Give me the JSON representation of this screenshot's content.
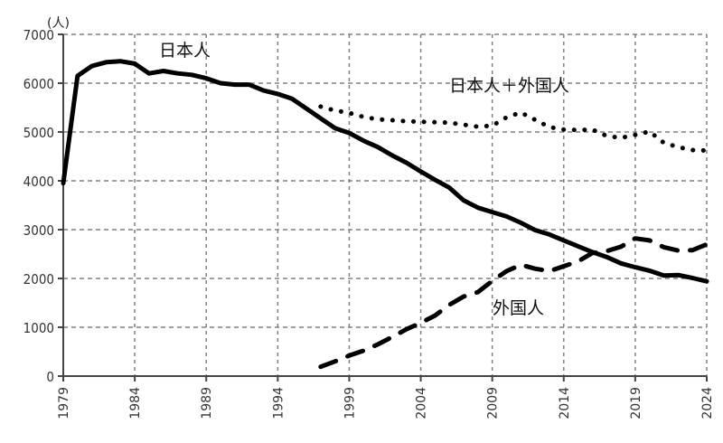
{
  "chart_data": {
    "type": "line",
    "title": "",
    "xlabel": "",
    "ylabel": "(人)",
    "y_unit_label": "(人)",
    "ylim": [
      0,
      7000
    ],
    "xlim": [
      1979,
      2024
    ],
    "grid": true,
    "legend_position": "inline annotations",
    "y_ticks": [
      0,
      1000,
      2000,
      3000,
      4000,
      5000,
      6000,
      7000
    ],
    "x_ticks": [
      1979,
      1984,
      1989,
      1994,
      1999,
      2004,
      2009,
      2014,
      2019,
      2024
    ],
    "x": [
      1979,
      1980,
      1981,
      1982,
      1983,
      1984,
      1985,
      1986,
      1987,
      1988,
      1989,
      1990,
      1991,
      1992,
      1993,
      1994,
      1995,
      1996,
      1997,
      1998,
      1999,
      2000,
      2001,
      2002,
      2003,
      2004,
      2005,
      2006,
      2007,
      2008,
      2009,
      2010,
      2011,
      2012,
      2013,
      2014,
      2015,
      2016,
      2017,
      2018,
      2019,
      2020,
      2021,
      2022,
      2023,
      2024
    ],
    "series": [
      {
        "name": "日本人",
        "style": "solid",
        "values": [
          3950,
          6150,
          6350,
          6430,
          6450,
          6400,
          6200,
          6250,
          6200,
          6170,
          6100,
          6000,
          5970,
          5970,
          5850,
          5780,
          5680,
          5480,
          5280,
          5080,
          4980,
          4820,
          4690,
          4520,
          4370,
          4190,
          4020,
          3860,
          3600,
          3450,
          3360,
          3270,
          3140,
          2990,
          2900,
          2780,
          2660,
          2540,
          2440,
          2310,
          2230,
          2160,
          2060,
          2070,
          2010,
          1940
        ]
      },
      {
        "name": "日本人＋外国人",
        "style": "dotted",
        "values": [
          null,
          null,
          null,
          null,
          null,
          null,
          null,
          null,
          null,
          null,
          null,
          null,
          null,
          null,
          null,
          null,
          null,
          null,
          5520,
          5440,
          5390,
          5310,
          5260,
          5240,
          5220,
          5210,
          5200,
          5190,
          5150,
          5110,
          5130,
          5300,
          5400,
          5250,
          5100,
          5050,
          5040,
          5050,
          4920,
          4880,
          4940,
          5010,
          4780,
          4690,
          4630,
          4620
        ]
      },
      {
        "name": "外国人",
        "style": "dashed",
        "values": [
          null,
          null,
          null,
          null,
          null,
          null,
          null,
          null,
          null,
          null,
          null,
          null,
          null,
          null,
          null,
          null,
          null,
          null,
          190,
          300,
          420,
          520,
          650,
          800,
          960,
          1090,
          1240,
          1460,
          1630,
          1720,
          1950,
          2150,
          2280,
          2200,
          2150,
          2250,
          2350,
          2520,
          2560,
          2650,
          2820,
          2780,
          2640,
          2570,
          2580,
          2700
        ]
      }
    ],
    "annotations": [
      {
        "text": "日本人",
        "series": "日本人"
      },
      {
        "text": "日本人＋外国人",
        "series": "日本人＋外国人"
      },
      {
        "text": "外国人",
        "series": "外国人"
      }
    ]
  }
}
